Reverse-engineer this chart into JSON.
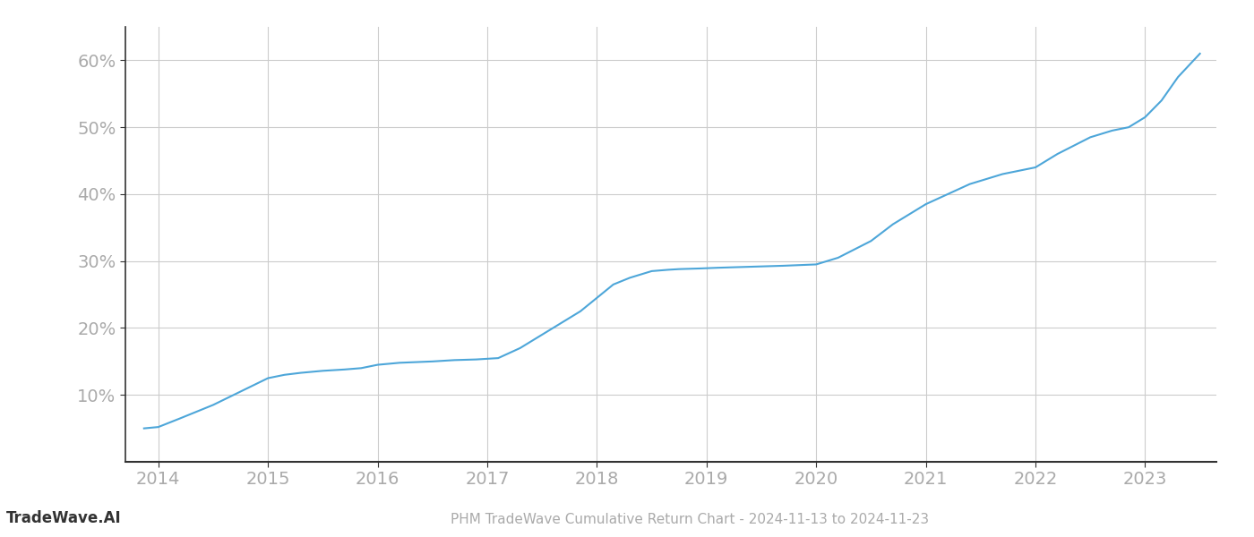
{
  "title": "PHM TradeWave Cumulative Return Chart - 2024-11-13 to 2024-11-23",
  "watermark": "TradeWave.AI",
  "line_color": "#4da6d9",
  "background_color": "#ffffff",
  "grid_color": "#cccccc",
  "x_values": [
    2013.87,
    2014.0,
    2014.2,
    2014.5,
    2014.75,
    2015.0,
    2015.15,
    2015.3,
    2015.5,
    2015.7,
    2015.85,
    2016.0,
    2016.2,
    2016.5,
    2016.7,
    2016.9,
    2017.1,
    2017.3,
    2017.5,
    2017.7,
    2017.85,
    2018.0,
    2018.15,
    2018.3,
    2018.5,
    2018.65,
    2018.75,
    2018.85,
    2018.95,
    2019.1,
    2019.3,
    2019.5,
    2019.7,
    2019.85,
    2020.0,
    2020.2,
    2020.5,
    2020.7,
    2020.9,
    2021.0,
    2021.2,
    2021.4,
    2021.5,
    2021.7,
    2021.85,
    2022.0,
    2022.2,
    2022.5,
    2022.7,
    2022.85,
    2023.0,
    2023.15,
    2023.3,
    2023.5
  ],
  "y_values": [
    5.0,
    5.2,
    6.5,
    8.5,
    10.5,
    12.5,
    13.0,
    13.3,
    13.6,
    13.8,
    14.0,
    14.5,
    14.8,
    15.0,
    15.2,
    15.3,
    15.5,
    17.0,
    19.0,
    21.0,
    22.5,
    24.5,
    26.5,
    27.5,
    28.5,
    28.7,
    28.8,
    28.85,
    28.9,
    29.0,
    29.1,
    29.2,
    29.3,
    29.4,
    29.5,
    30.5,
    33.0,
    35.5,
    37.5,
    38.5,
    40.0,
    41.5,
    42.0,
    43.0,
    43.5,
    44.0,
    46.0,
    48.5,
    49.5,
    50.0,
    51.5,
    54.0,
    57.5,
    61.0
  ],
  "xlim": [
    2013.7,
    2023.65
  ],
  "ylim": [
    0,
    65
  ],
  "yticks": [
    10,
    20,
    30,
    40,
    50,
    60
  ],
  "ytick_labels": [
    "10%",
    "20%",
    "30%",
    "40%",
    "50%",
    "60%"
  ],
  "xticks": [
    2014,
    2015,
    2016,
    2017,
    2018,
    2019,
    2020,
    2021,
    2022,
    2023
  ],
  "line_width": 1.5,
  "figsize": [
    14.0,
    6.0
  ],
  "dpi": 100,
  "title_fontsize": 11,
  "watermark_fontsize": 12,
  "tick_fontsize": 14,
  "title_color": "#aaaaaa",
  "watermark_color": "#333333",
  "tick_color": "#aaaaaa",
  "left_spine_color": "#333333",
  "bottom_spine_color": "#333333",
  "grid_linewidth": 0.8
}
